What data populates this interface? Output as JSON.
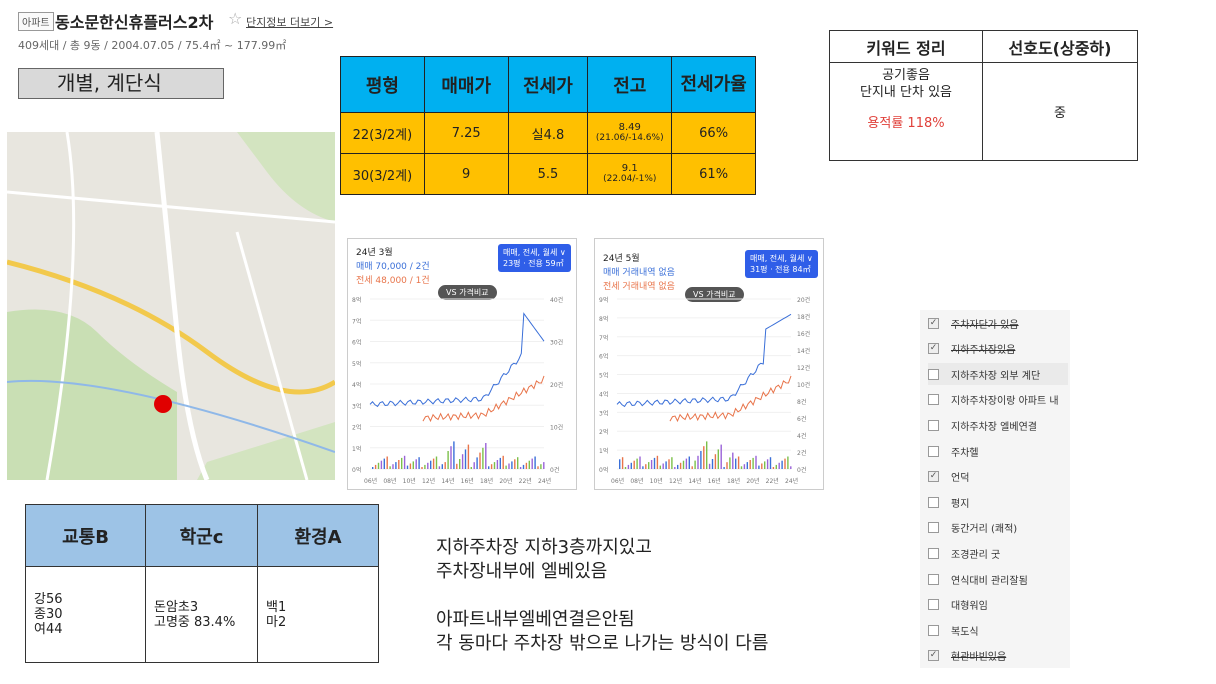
{
  "header": {
    "tag": "아파트",
    "title": "동소문한신휴플러스2차",
    "more_link": "단지정보 더보기 >",
    "meta": "409세대 / 총 9동 / 2004.07.05 / 75.4㎡ ~ 177.99㎡",
    "type_label": "개별, 계단식"
  },
  "price_table": {
    "headers": [
      "평형",
      "매매가",
      "전세가",
      "전고",
      "전세가율"
    ],
    "rows": [
      {
        "size": "22(3/2계)",
        "sale": "7.25",
        "jeonse": "실4.8",
        "peak": "8.49",
        "peak_sub": "(21.06/-14.6%)",
        "ratio": "66%"
      },
      {
        "size": "30(3/2계)",
        "sale": "9",
        "jeonse": "5.5",
        "peak": "9.1",
        "peak_sub": "(22.04/-1%)",
        "ratio": "61%"
      }
    ]
  },
  "keyword_table": {
    "headers": [
      "키워드 정리",
      "선호도(상중하)"
    ],
    "kw_line1": "공기좋음",
    "kw_line2": "단지내 단차 있음",
    "kw_ratio": "용적률 118%",
    "preference": "중"
  },
  "charts": [
    {
      "date": "24년 3월",
      "line1": "매매 70,000 / 2건",
      "line2": "전세 48,000 / 1건",
      "badge_top": "매매, 전세, 월세 ∨",
      "badge_bottom": "23평 · 전용 59㎡",
      "vs": "VS 가격비교",
      "y_left": [
        "8억",
        "7억",
        "6억",
        "5억",
        "4억",
        "3억",
        "2억",
        "1억",
        "0억"
      ],
      "y_right": [
        "40건",
        "30건",
        "20건",
        "10건",
        "0건"
      ],
      "x": [
        "06년",
        "08년",
        "10년",
        "12년",
        "14년",
        "16년",
        "18년",
        "20년",
        "22년",
        "24년"
      ]
    },
    {
      "date": "24년 5월",
      "line1": "매매 거래내역 없음",
      "line2": "전세 거래내역 없음",
      "badge_top": "매매, 전세, 월세 ∨",
      "badge_bottom": "31평 · 전용 84㎡",
      "vs": "VS 가격비교",
      "y_left": [
        "9억",
        "8억",
        "7억",
        "6억",
        "5억",
        "4억",
        "3억",
        "2억",
        "1억",
        "0억"
      ],
      "y_right": [
        "20건",
        "18건",
        "16건",
        "14건",
        "12건",
        "10건",
        "8건",
        "6건",
        "4건",
        "2건",
        "0건"
      ],
      "x": [
        "06년",
        "08년",
        "10년",
        "12년",
        "14년",
        "16년",
        "18년",
        "20년",
        "22년",
        "24년"
      ]
    }
  ],
  "category_table": {
    "headers": [
      "교통B",
      "학군c",
      "환경A"
    ],
    "traffic": [
      "강56",
      "종30",
      "여44"
    ],
    "school": [
      "돈암초3",
      "고명중 83.4%"
    ],
    "env": [
      "백1",
      "마2"
    ]
  },
  "notes": [
    "지하주차장 지하3층까지있고",
    "주차장내부에 엘베있음",
    "",
    "아파트내부엘베연결은안됨",
    "각 동마다 주차장 밖으로 나가는 방식이 다름"
  ],
  "checklist": [
    {
      "label": "주차자단가 있음",
      "checked": true
    },
    {
      "label": "지하주차장있음",
      "checked": true
    },
    {
      "label": "지하주차장 외부 계단",
      "checked": false
    },
    {
      "label": "지하주차장이랑 아파트 내",
      "checked": false
    },
    {
      "label": "지하주차장 엘베연결",
      "checked": false
    },
    {
      "label": "주차헬",
      "checked": false
    },
    {
      "label": "언덕",
      "checked": true
    },
    {
      "label": "평지",
      "checked": false
    },
    {
      "label": "동간거리 (쾌적)",
      "checked": false
    },
    {
      "label": "조경관리 굿",
      "checked": false
    },
    {
      "label": "연식대비 관리잘됨",
      "checked": false
    },
    {
      "label": "대형워임",
      "checked": false
    },
    {
      "label": "복도식",
      "checked": false
    },
    {
      "label": "현관바빈있음",
      "checked": true
    }
  ],
  "colors": {
    "price_header": "#00b0f0",
    "price_row": "#ffc000",
    "category_header": "#9dc3e6",
    "sale_line": "#3a6fd8",
    "jeonse_line": "#e8744a",
    "marker": "#e00000"
  }
}
